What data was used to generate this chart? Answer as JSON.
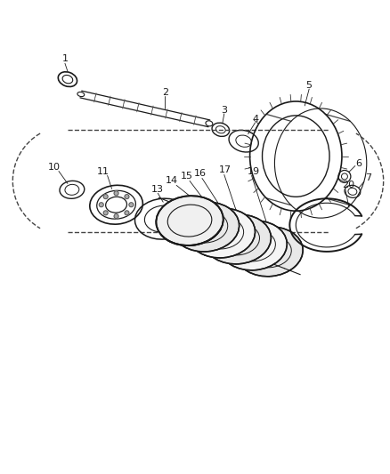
{
  "bg_color": "#ffffff",
  "line_color": "#1a1a1a",
  "label_color": "#1a1a1a",
  "fig_w": 4.39,
  "fig_h": 5.33,
  "dpi": 100
}
